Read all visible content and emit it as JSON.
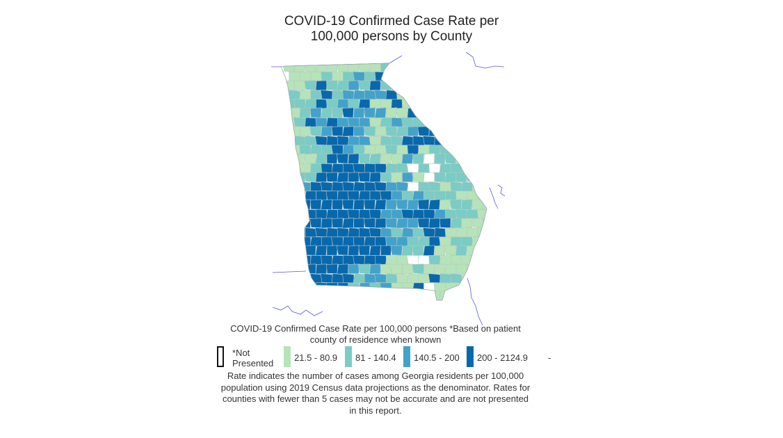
{
  "title": {
    "line1": "COVID-19 Confirmed Case Rate per",
    "line2": "100,000 persons by County"
  },
  "legend": {
    "heading_line1": "COVID-19 Confirmed Case Rate per 100,000 persons *Based on patient",
    "heading_line2": "county of residence when known",
    "items": [
      {
        "label_line1": "*Not",
        "label_line2": "Presented",
        "color": "#ffffff",
        "border": "#111111"
      },
      {
        "label": "21.5 - 80.9",
        "color": "#b6e3b8"
      },
      {
        "label": "81 - 140.4",
        "color": "#7accc4"
      },
      {
        "label": "140.5 - 200",
        "color": "#43a2ca"
      },
      {
        "label": "200 - 2124.9",
        "color": "#0868ac"
      }
    ],
    "trailing_mark": "-"
  },
  "footnote": {
    "line1": "Rate indicates the number of cases among Georgia residents per 100,000",
    "line2": "population using 2019 Census data projections as the denominator. Rates for",
    "line3": "counties with fewer than 5 cases may not be accurate and are not presented",
    "line4": "in this report."
  },
  "colors": {
    "class_none": "#ffffff",
    "class_1": "#b6e3b8",
    "class_2": "#7accc4",
    "class_3": "#43a2ca",
    "class_4": "#0868ac",
    "neighbor_outline": "#5555ee"
  }
}
